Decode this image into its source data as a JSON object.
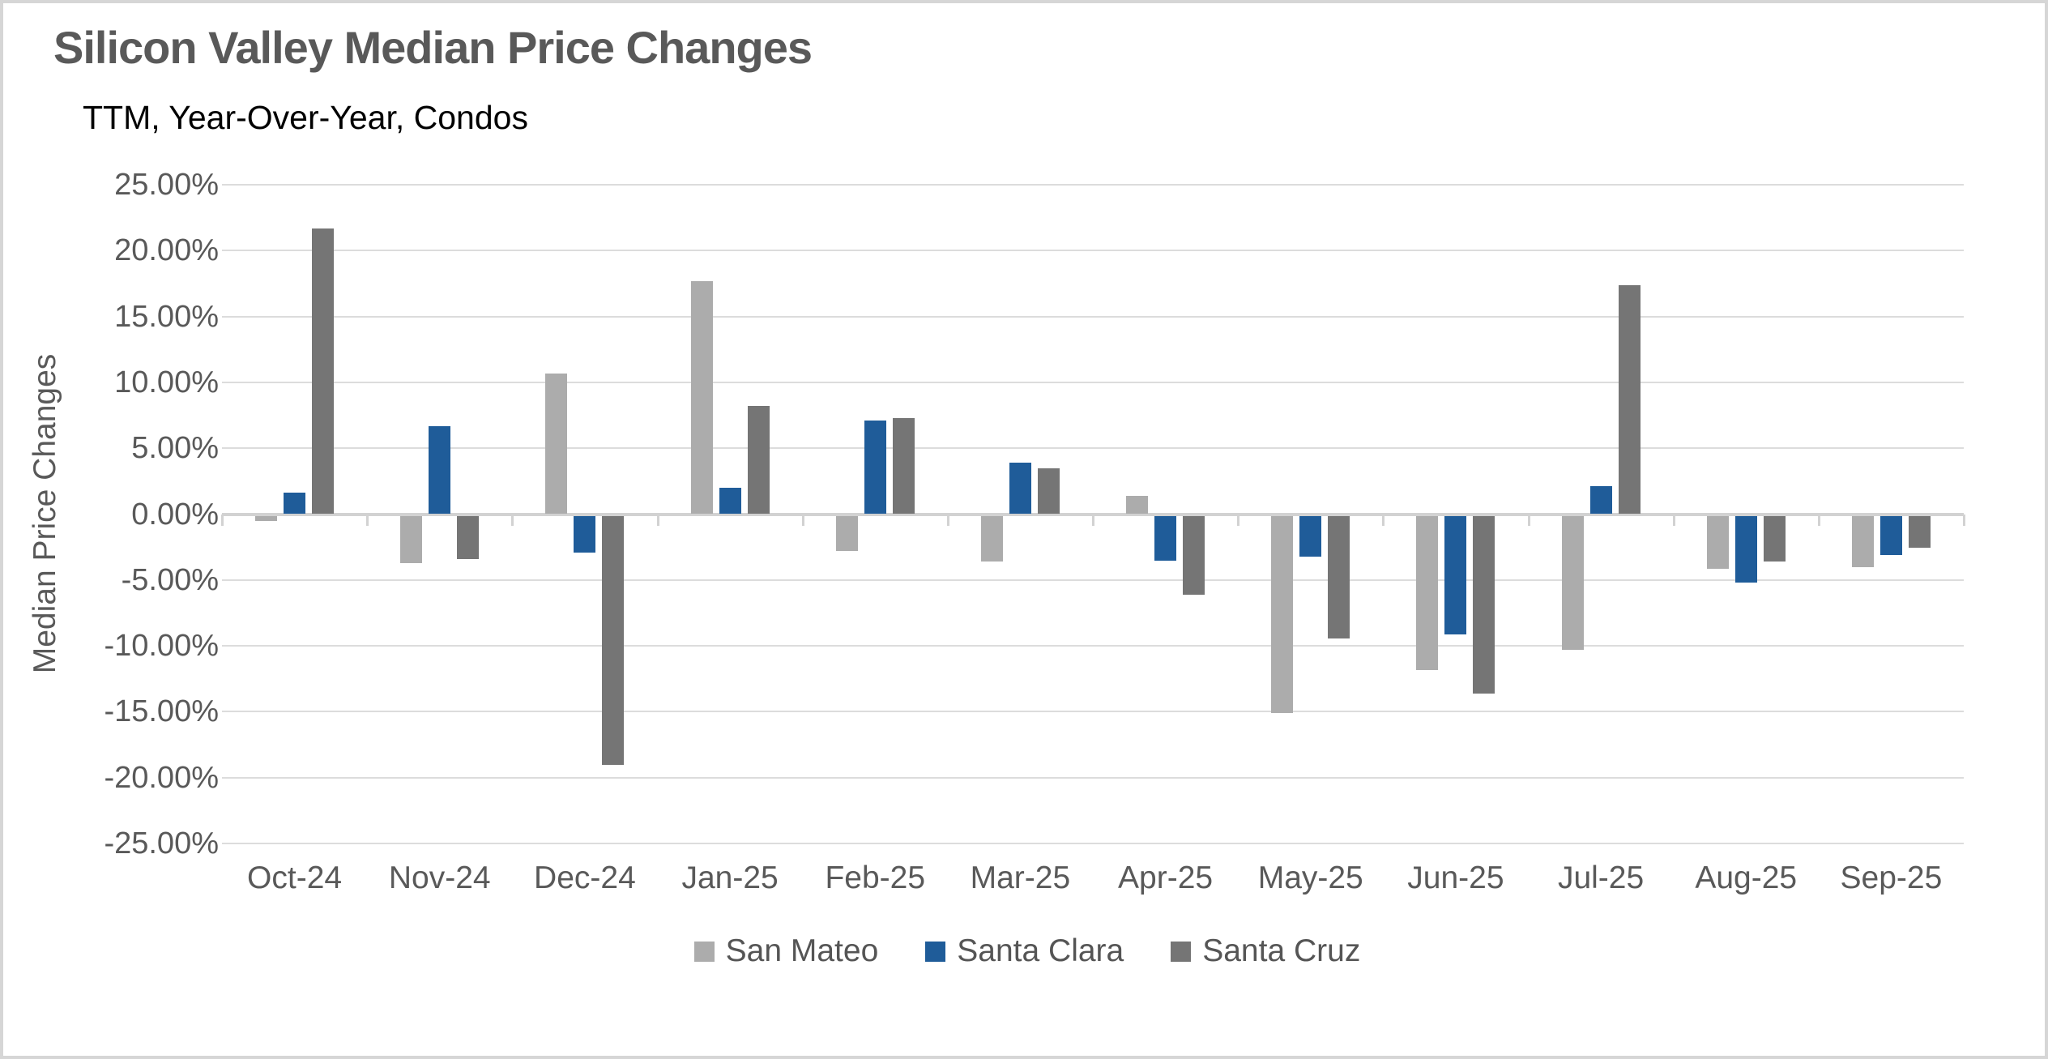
{
  "chart_data": {
    "type": "bar",
    "title": "Silicon Valley Median Price Changes",
    "subtitle": "TTM, Year-Over-Year, Condos",
    "ylabel": "Median Price Changes",
    "xlabel": "",
    "categories": [
      "Oct-24",
      "Nov-24",
      "Dec-24",
      "Jan-25",
      "Feb-25",
      "Mar-25",
      "Apr-25",
      "May-25",
      "Jun-25",
      "Jul-25",
      "Aug-25",
      "Sep-25"
    ],
    "series": [
      {
        "name": "San Mateo",
        "color": "#acacac",
        "values": [
          -0.4,
          -3.6,
          10.7,
          17.7,
          -2.7,
          -3.5,
          1.4,
          -15.0,
          -11.7,
          -10.2,
          -4.0,
          -3.9
        ]
      },
      {
        "name": "Santa Clara",
        "color": "#1f5c99",
        "values": [
          1.6,
          6.7,
          -2.8,
          2.0,
          7.1,
          3.9,
          -3.4,
          -3.1,
          -9.0,
          2.1,
          -5.1,
          -3.0
        ]
      },
      {
        "name": "Santa Cruz",
        "color": "#757575",
        "values": [
          21.7,
          -3.3,
          -18.9,
          8.2,
          7.3,
          3.5,
          -6.0,
          -9.3,
          -13.5,
          17.4,
          -3.5,
          -2.4
        ]
      }
    ],
    "ylim": [
      -25,
      25
    ],
    "ytick_step": 5,
    "ytick_labels": [
      "25.00%",
      "20.00%",
      "15.00%",
      "10.00%",
      "5.00%",
      "0.00%",
      "-5.00%",
      "-10.00%",
      "-15.00%",
      "-20.00%",
      "-25.00%"
    ],
    "grid": true,
    "legend_position": "bottom",
    "colors": {
      "title_text": "#595959",
      "axis_text": "#595959",
      "gridline": "#dcdcdc",
      "zero_axis": "#d2d2d2",
      "background": "#ffffff",
      "canvas_border": "#d6d6d6"
    }
  }
}
